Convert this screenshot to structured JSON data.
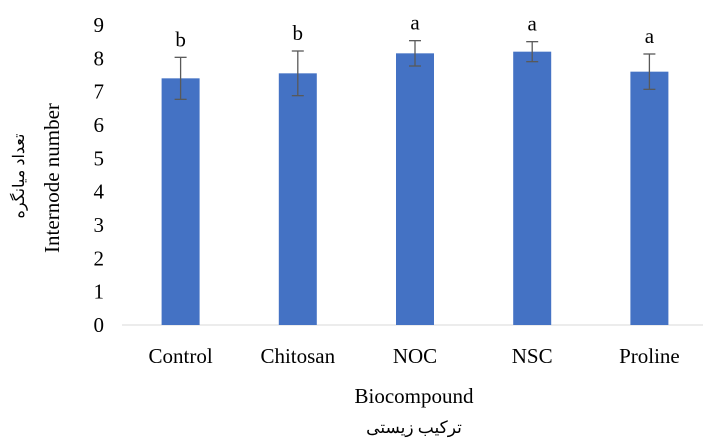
{
  "chart_data": {
    "type": "bar",
    "title": "",
    "xlabel": "Biocompound",
    "xlabel_secondary": "ترکیب زیستی",
    "ylabel": "Internode number",
    "ylabel_secondary": "تعداد میانگره",
    "ylim": [
      0,
      9
    ],
    "yticks": [
      0,
      1,
      2,
      3,
      4,
      5,
      6,
      7,
      8,
      9
    ],
    "grid": false,
    "legend": "none",
    "bar_color": "#4472C4",
    "errorbar_color": "#595959",
    "categories": [
      "Control",
      "Chitosan",
      "NOC",
      "NSC",
      "Proline"
    ],
    "values": [
      7.4,
      7.55,
      8.15,
      8.2,
      7.6
    ],
    "errors": [
      0.63,
      0.67,
      0.38,
      0.3,
      0.53
    ],
    "significance_letters": [
      "b",
      "b",
      "a",
      "a",
      "a"
    ]
  }
}
